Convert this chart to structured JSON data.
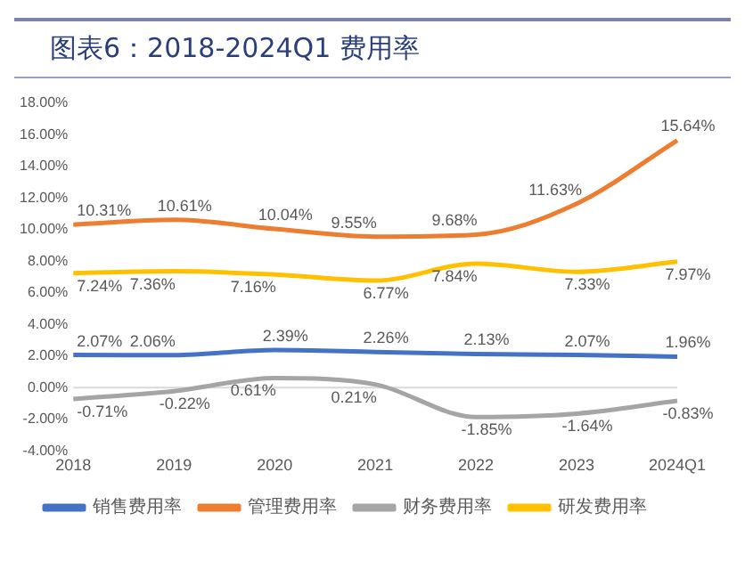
{
  "chart_data": {
    "type": "line",
    "title": "图表6：2018-2024Q1 费用率",
    "categories": [
      "2018",
      "2019",
      "2020",
      "2021",
      "2022",
      "2023",
      "2024Q1"
    ],
    "series": [
      {
        "name": "销售费用率",
        "color": "#4472c4",
        "values": [
          2.07,
          2.06,
          2.39,
          2.26,
          2.13,
          2.07,
          1.96
        ],
        "value_labels": [
          "2.07%",
          "2.06%",
          "2.39%",
          "2.26%",
          "2.13%",
          "2.07%",
          "1.96%"
        ]
      },
      {
        "name": "管理费用率",
        "color": "#ed7d31",
        "values": [
          10.31,
          10.61,
          10.04,
          9.55,
          9.68,
          11.63,
          15.64
        ],
        "value_labels": [
          "10.31%",
          "10.61%",
          "10.04%",
          "9.55%",
          "9.68%",
          "11.63%",
          "15.64%"
        ]
      },
      {
        "name": "财务费用率",
        "color": "#a5a5a5",
        "values": [
          -0.71,
          -0.22,
          0.61,
          0.21,
          -1.85,
          -1.64,
          -0.83
        ],
        "value_labels": [
          "-0.71%",
          "-0.22%",
          "0.61%",
          "0.21%",
          "-1.85%",
          "-1.64%",
          "-0.83%"
        ]
      },
      {
        "name": "研发费用率",
        "color": "#ffc000",
        "values": [
          7.24,
          7.36,
          7.16,
          6.77,
          7.84,
          7.33,
          7.97
        ],
        "value_labels": [
          "7.24%",
          "7.36%",
          "7.16%",
          "6.77%",
          "7.84%",
          "7.33%",
          "7.97%"
        ]
      }
    ],
    "ylim": [
      -4,
      18
    ],
    "yticks": [
      {
        "value": -4,
        "label": "-4.00%"
      },
      {
        "value": -2,
        "label": "-2.00%"
      },
      {
        "value": 0,
        "label": "0.00%"
      },
      {
        "value": 2,
        "label": "2.00%"
      },
      {
        "value": 4,
        "label": "4.00%"
      },
      {
        "value": 6,
        "label": "6.00%"
      },
      {
        "value": 8,
        "label": "8.00%"
      },
      {
        "value": 10,
        "label": "10.00%"
      },
      {
        "value": 12,
        "label": "12.00%"
      },
      {
        "value": 14,
        "label": "14.00%"
      },
      {
        "value": 16,
        "label": "16.00%"
      },
      {
        "value": 18,
        "label": "18.00%"
      }
    ],
    "ref_lines": [
      {
        "axis": "y",
        "value": 0,
        "color": "#d9d9d9"
      }
    ],
    "grid": false,
    "legend": "bottom",
    "marker": "none",
    "line_style": "solid"
  }
}
